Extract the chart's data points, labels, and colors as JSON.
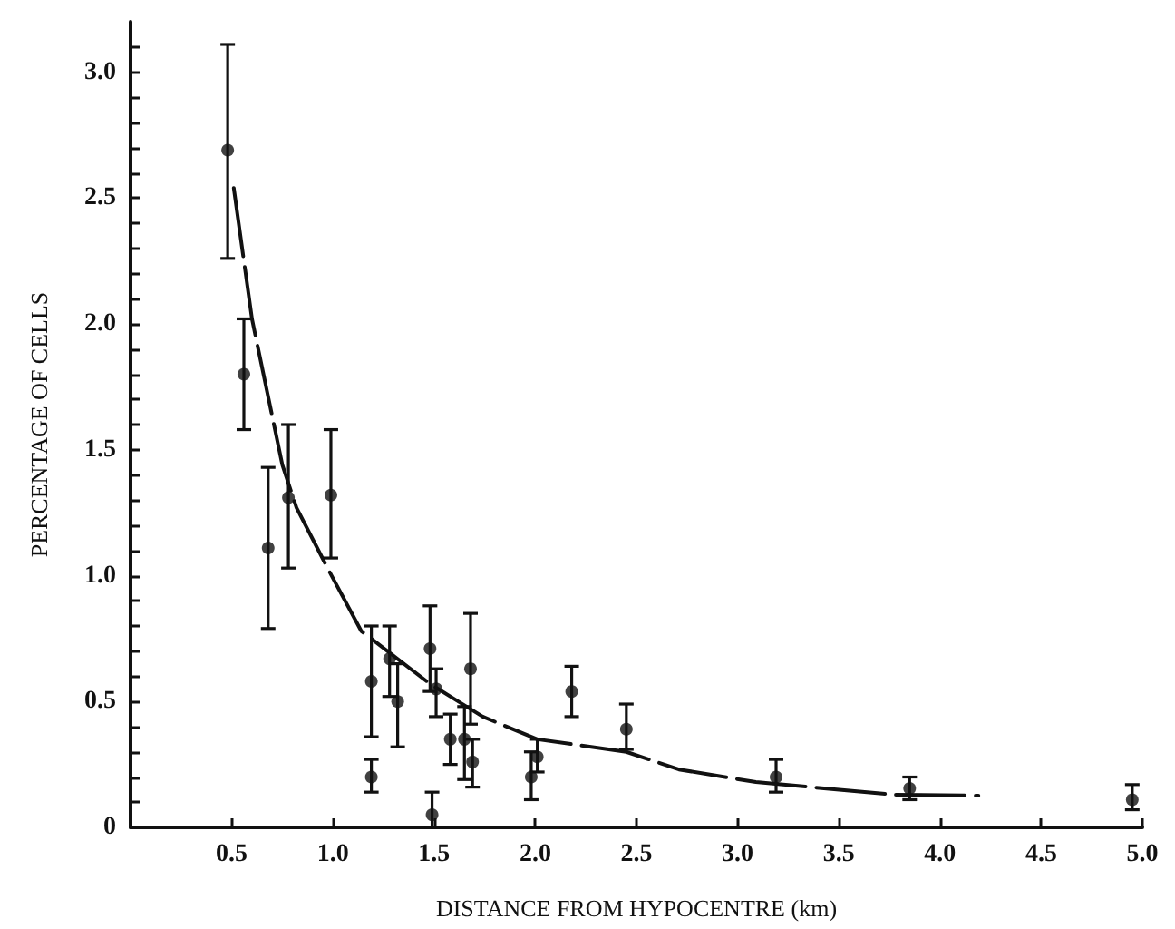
{
  "chart_data": {
    "type": "scatter",
    "xlabel": "DISTANCE FROM HYPOCENTRE (km)",
    "ylabel": "PERCENTAGE OF CELLS",
    "xlim": [
      0,
      5.0
    ],
    "ylim": [
      0,
      3.2
    ],
    "xticks": [
      {
        "value": 0.5,
        "label": "0.5"
      },
      {
        "value": 1,
        "label": "1.0"
      },
      {
        "value": 1.5,
        "label": "1.5"
      },
      {
        "value": 2,
        "label": "2.0"
      },
      {
        "value": 2.5,
        "label": "2.5"
      },
      {
        "value": 3,
        "label": "3.0"
      },
      {
        "value": 3.5,
        "label": "3.5"
      },
      {
        "value": 4,
        "label": "4.0"
      },
      {
        "value": 4.5,
        "label": "4.5"
      },
      {
        "value": 5,
        "label": "5.0"
      }
    ],
    "yticks": [
      {
        "value": 0,
        "label": "0"
      },
      {
        "value": 0.1,
        "label": null
      },
      {
        "value": 0.2,
        "label": null
      },
      {
        "value": 0.3,
        "label": null
      },
      {
        "value": 0.4,
        "label": null
      },
      {
        "value": 0.5,
        "label": "0.5"
      },
      {
        "value": 0.6,
        "label": null
      },
      {
        "value": 0.7,
        "label": null
      },
      {
        "value": 0.8,
        "label": null
      },
      {
        "value": 0.9,
        "label": null
      },
      {
        "value": 1,
        "label": "1.0"
      },
      {
        "value": 1.1,
        "label": null
      },
      {
        "value": 1.2,
        "label": null
      },
      {
        "value": 1.3,
        "label": null
      },
      {
        "value": 1.4,
        "label": null
      },
      {
        "value": 1.5,
        "label": "1.5"
      },
      {
        "value": 1.6,
        "label": null
      },
      {
        "value": 1.7,
        "label": null
      },
      {
        "value": 1.8,
        "label": null
      },
      {
        "value": 1.9,
        "label": null
      },
      {
        "value": 2,
        "label": "2.0"
      },
      {
        "value": 2.1,
        "label": null
      },
      {
        "value": 2.2,
        "label": null
      },
      {
        "value": 2.3,
        "label": null
      },
      {
        "value": 2.4,
        "label": null
      },
      {
        "value": 2.5,
        "label": "2.5"
      },
      {
        "value": 2.6,
        "label": null
      },
      {
        "value": 2.7,
        "label": null
      },
      {
        "value": 2.8,
        "label": null
      },
      {
        "value": 2.9,
        "label": null
      },
      {
        "value": 3,
        "label": "3.0"
      },
      {
        "value": 3.1,
        "label": null
      }
    ],
    "grid": false,
    "marker": "circle",
    "series": [
      {
        "color": "#111111",
        "x": [
          0.48,
          0.56,
          0.68,
          0.78,
          0.99,
          1.19,
          1.19,
          1.28,
          1.32,
          1.48,
          1.51,
          1.49,
          1.58,
          1.65,
          1.68,
          1.69,
          1.98,
          2.01,
          2.18,
          2.45,
          3.19,
          3.85,
          4.95
        ],
        "values": [
          2.69,
          1.8,
          1.11,
          1.31,
          1.32,
          0.58,
          0.2,
          0.67,
          0.5,
          0.71,
          0.55,
          0.05,
          0.35,
          0.35,
          0.63,
          0.26,
          0.2,
          0.28,
          0.54,
          0.39,
          0.2,
          0.155,
          0.11
        ],
        "errors": [
          [
            2.26,
            3.11
          ],
          [
            1.58,
            2.02
          ],
          [
            0.79,
            1.43
          ],
          [
            1.03,
            1.6
          ],
          [
            1.07,
            1.58
          ],
          [
            0.36,
            0.8
          ],
          [
            0.14,
            0.27
          ],
          [
            0.52,
            0.8
          ],
          [
            0.32,
            0.65
          ],
          [
            0.54,
            0.88
          ],
          [
            0.44,
            0.63
          ],
          [
            0,
            0.14
          ],
          [
            0.25,
            0.45
          ],
          [
            0.19,
            0.48
          ],
          [
            0.41,
            0.85
          ],
          [
            0.16,
            0.35
          ],
          [
            0.11,
            0.3
          ],
          [
            0.22,
            0.35
          ],
          [
            0.44,
            0.64
          ],
          [
            0.31,
            0.49
          ],
          [
            0.14,
            0.27
          ],
          [
            0.11,
            0.2
          ],
          [
            0.07,
            0.17
          ]
        ]
      },
      {
        "type": "line",
        "color": "#111111",
        "line_style": "dashed",
        "marker": "none",
        "x": [
          0.51,
          0.6,
          0.75,
          0.82,
          0.98,
          1.14,
          1.48,
          1.74,
          2.01,
          2.45,
          2.71,
          3.09,
          3.77,
          4.19
        ],
        "values": [
          2.54,
          2.02,
          1.44,
          1.27,
          1.02,
          0.78,
          0.57,
          0.44,
          0.35,
          0.3,
          0.23,
          0.18,
          0.13,
          0.126
        ]
      }
    ]
  }
}
